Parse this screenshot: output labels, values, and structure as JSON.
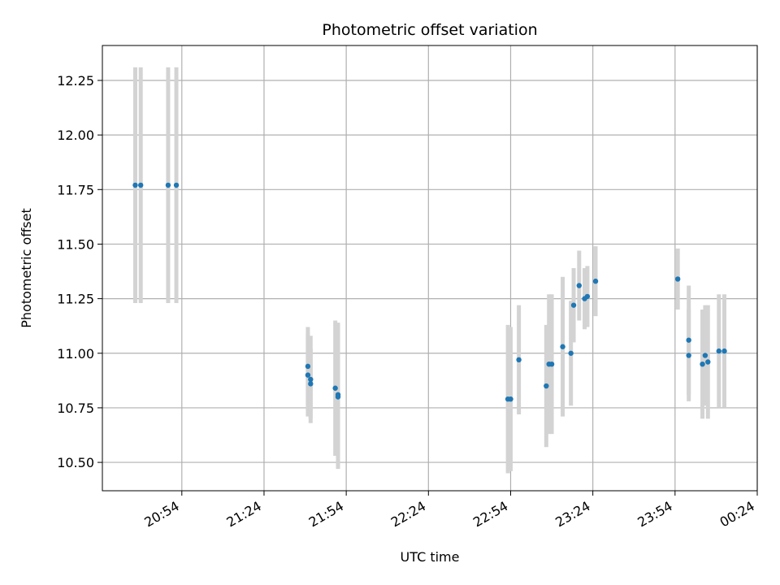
{
  "chart_data": {
    "type": "scatter",
    "title": "Photometric offset variation",
    "xlabel": "UTC time",
    "ylabel": "Photometric offset",
    "x_ticks": [
      "20:54",
      "21:24",
      "21:54",
      "22:24",
      "22:54",
      "23:24",
      "23:54",
      "00:24"
    ],
    "y_ticks": [
      "10.50",
      "10.75",
      "11.00",
      "11.25",
      "11.50",
      "11.75",
      "12.00",
      "12.25"
    ],
    "xlim": [
      "20:25",
      "00:24"
    ],
    "ylim": [
      10.37,
      12.41
    ],
    "grid": true,
    "errorbar_color": "#d3d3d3",
    "marker_color": "#1f77b4",
    "series": [
      {
        "points": [
          {
            "x": "20:37",
            "y": 11.77,
            "err": 0.54
          },
          {
            "x": "20:39",
            "y": 11.77,
            "err": 0.54
          },
          {
            "x": "20:49",
            "y": 11.77,
            "err": 0.54
          },
          {
            "x": "20:52",
            "y": 11.77,
            "err": 0.54
          },
          {
            "x": "21:40",
            "y": 10.94,
            "err": 0.18
          },
          {
            "x": "21:40",
            "y": 10.9,
            "err": 0.19
          },
          {
            "x": "21:41",
            "y": 10.88,
            "err": 0.2
          },
          {
            "x": "21:41",
            "y": 10.86,
            "err": 0.16
          },
          {
            "x": "21:50",
            "y": 10.84,
            "err": 0.31
          },
          {
            "x": "21:51",
            "y": 10.81,
            "err": 0.33
          },
          {
            "x": "21:51",
            "y": 10.8,
            "err": 0.33
          },
          {
            "x": "22:53",
            "y": 10.79,
            "err": 0.34
          },
          {
            "x": "22:54",
            "y": 10.79,
            "err": 0.33
          },
          {
            "x": "22:57",
            "y": 10.97,
            "err": 0.25
          },
          {
            "x": "23:07",
            "y": 10.85,
            "err": 0.28
          },
          {
            "x": "23:08",
            "y": 10.95,
            "err": 0.32
          },
          {
            "x": "23:09",
            "y": 10.95,
            "err": 0.32
          },
          {
            "x": "23:13",
            "y": 11.03,
            "err": 0.32
          },
          {
            "x": "23:16",
            "y": 11.0,
            "err": 0.24
          },
          {
            "x": "23:17",
            "y": 11.22,
            "err": 0.17
          },
          {
            "x": "23:19",
            "y": 11.31,
            "err": 0.16
          },
          {
            "x": "23:21",
            "y": 11.25,
            "err": 0.14
          },
          {
            "x": "23:22",
            "y": 11.26,
            "err": 0.14
          },
          {
            "x": "23:25",
            "y": 11.33,
            "err": 0.16
          },
          {
            "x": "23:55",
            "y": 11.34,
            "err": 0.14
          },
          {
            "x": "23:59",
            "y": 11.06,
            "err": 0.25
          },
          {
            "x": "23:59",
            "y": 10.99,
            "err": 0.21
          },
          {
            "x": "24:04",
            "y": 10.95,
            "err": 0.25
          },
          {
            "x": "24:05",
            "y": 10.99,
            "err": 0.23
          },
          {
            "x": "24:06",
            "y": 10.96,
            "err": 0.26
          },
          {
            "x": "24:10",
            "y": 11.01,
            "err": 0.26
          },
          {
            "x": "24:12",
            "y": 11.01,
            "err": 0.26
          }
        ]
      }
    ]
  }
}
